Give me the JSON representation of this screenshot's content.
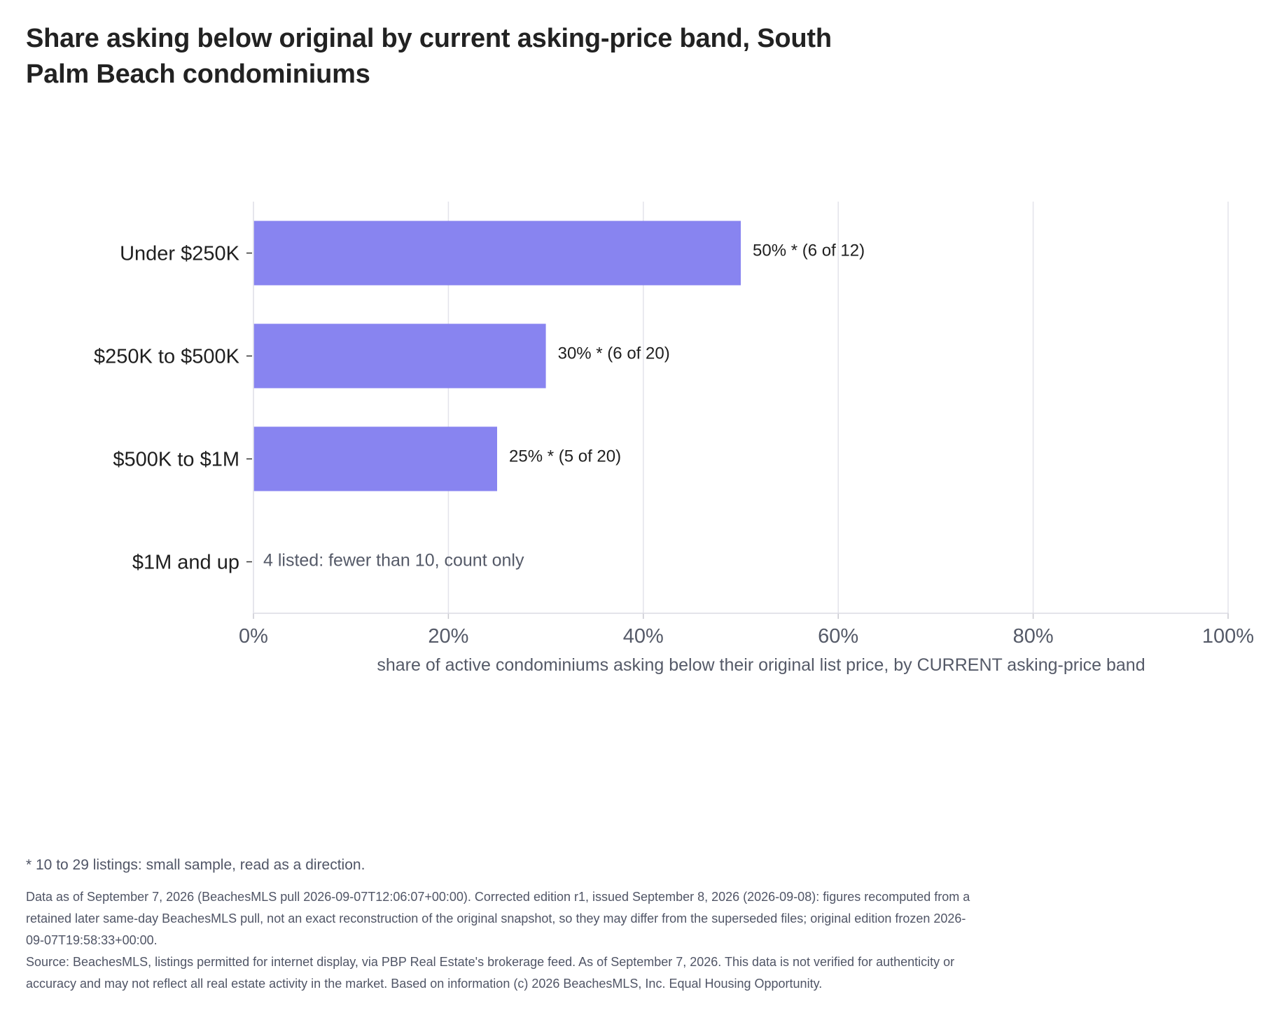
{
  "title": "Share asking below original by current asking-price band, South Palm Beach condominiums",
  "chart_data": {
    "type": "bar",
    "orientation": "horizontal",
    "title": "Share asking below original by current asking-price band, South Palm Beach condominiums",
    "xlabel": "share of active condominiums asking below their original list price, by CURRENT asking-price band",
    "ylabel": "",
    "xlim": [
      0,
      100
    ],
    "xticks": [
      "0%",
      "20%",
      "40%",
      "60%",
      "80%",
      "100%"
    ],
    "grid": "vertical",
    "bar_color": "#8884f0",
    "categories": [
      "Under $250K",
      "$250K to $500K",
      "$500K to $1M",
      "$1M and up"
    ],
    "values": [
      50,
      30,
      25,
      null
    ],
    "labels": [
      "50% *  (6 of 12)",
      "30% *  (6 of 20)",
      "25% *  (5 of 20)",
      "4 listed: fewer than 10, count only"
    ]
  },
  "footnote": "* 10 to 29 listings: small sample, read as a direction.",
  "notes": {
    "data_note": "Data as of September 7, 2026 (BeachesMLS pull 2026-09-07T12:06:07+00:00). Corrected edition r1, issued September 8, 2026 (2026-09-08): figures recomputed from a retained later same-day BeachesMLS pull, not an exact reconstruction of the original snapshot, so they may differ from the superseded files; original edition frozen 2026-09-07T19:58:33+00:00.",
    "source": "Source: BeachesMLS, listings permitted for internet display, via PBP Real Estate's brokerage feed. As of September 7, 2026. This data is not verified for authenticity or accuracy and may not reflect all real estate activity in the market. Based on information (c) 2026 BeachesMLS, Inc. Equal Housing Opportunity."
  }
}
